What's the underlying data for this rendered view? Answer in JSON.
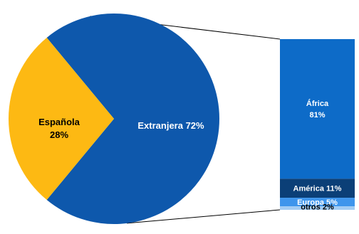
{
  "chart_data": {
    "type": "pie",
    "subtype": "pie-of-bar",
    "pie": {
      "slices": [
        {
          "label": "Española",
          "value": 28,
          "value_label": "28%",
          "color": "#FDB913"
        },
        {
          "label": "Extranjera",
          "value": 72,
          "value_label": "Extranjera 72%",
          "color": "#0E58AC"
        }
      ]
    },
    "bar": {
      "parent": "Extranjera",
      "segments": [
        {
          "label": "África",
          "value": 81,
          "value_label": "81%",
          "color": "#0D6BC8"
        },
        {
          "label": "América",
          "value": 11,
          "value_label": "América 11%",
          "color": "#0B3F77"
        },
        {
          "label": "Europa",
          "value": 5,
          "value_label": "Europa 5%",
          "color": "#3E95EC"
        },
        {
          "label": "otros",
          "value": 2,
          "value_label": "otros 2%",
          "color": "#A2CCF4"
        }
      ]
    },
    "colors": {
      "connector": "#000000",
      "label_light": "#ffffff",
      "label_dark": "#000000"
    }
  }
}
